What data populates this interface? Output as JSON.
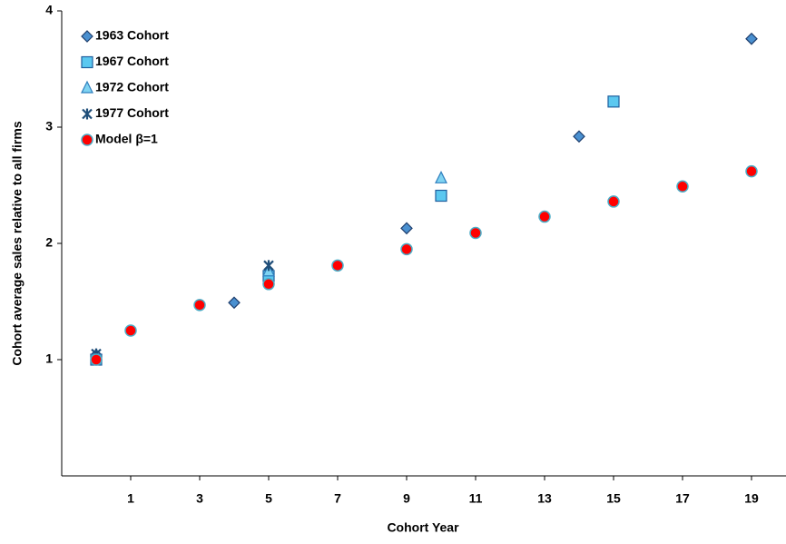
{
  "chart_data": {
    "type": "scatter",
    "x_label": "Cohort Year",
    "y_label": "Cohort average sales relative to all firms",
    "xlim": [
      -1,
      20
    ],
    "xticks": [
      1,
      3,
      5,
      7,
      9,
      11,
      13,
      15,
      17,
      19
    ],
    "ylim": [
      0,
      4
    ],
    "yticks": [
      1,
      2,
      3,
      4
    ],
    "grid": false,
    "legend": "top-left",
    "series": [
      {
        "name": "1963 Cohort",
        "marker": "diamond",
        "color": "#4a90d0",
        "x": [
          0,
          4,
          9,
          14,
          19
        ],
        "values": [
          1.04,
          1.49,
          2.13,
          2.92,
          3.76
        ]
      },
      {
        "name": "1967 Cohort",
        "marker": "square",
        "color": "#5bc8f0",
        "x": [
          0,
          5,
          10,
          15
        ],
        "values": [
          1.0,
          1.72,
          2.41,
          3.22
        ]
      },
      {
        "name": "1972 Cohort",
        "marker": "triangle",
        "color": "#7fd3f2",
        "x": [
          0,
          5,
          10
        ],
        "values": [
          1.03,
          1.76,
          2.56
        ]
      },
      {
        "name": "1977 Cohort",
        "marker": "star",
        "color": "#1f4e79",
        "x": [
          0,
          5
        ],
        "values": [
          1.05,
          1.81
        ]
      },
      {
        "name": "Model β=1",
        "marker": "circle",
        "color": "#ff0000",
        "x": [
          0,
          1,
          3,
          5,
          7,
          9,
          11,
          13,
          15,
          17,
          19
        ],
        "values": [
          1.0,
          1.25,
          1.47,
          1.65,
          1.81,
          1.95,
          2.09,
          2.23,
          2.36,
          2.49,
          2.62
        ]
      }
    ]
  }
}
